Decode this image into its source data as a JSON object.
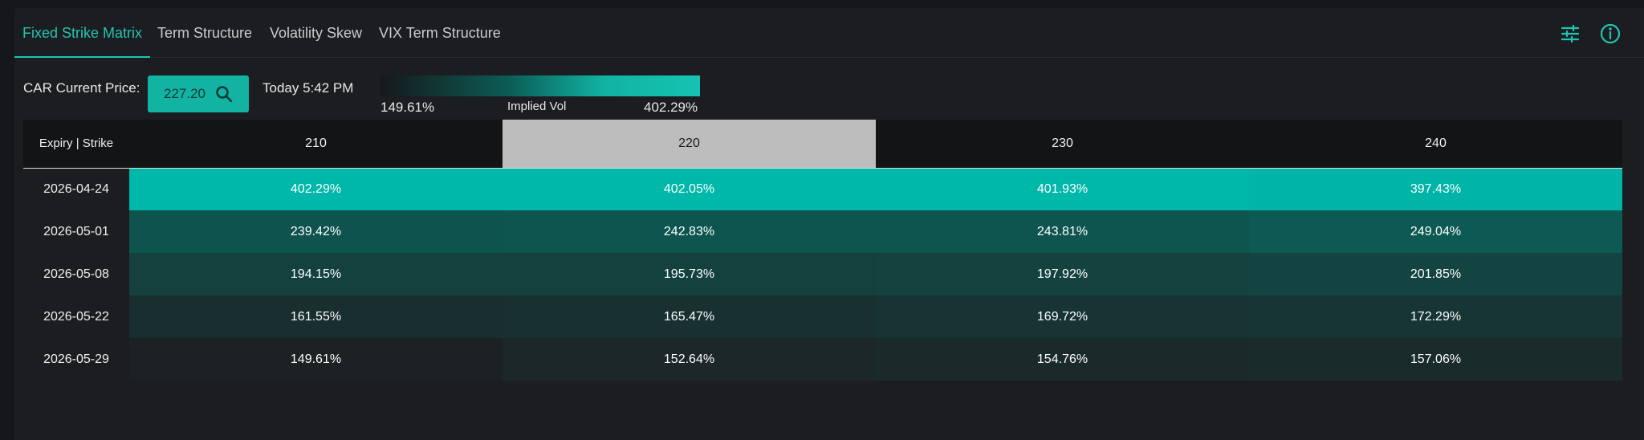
{
  "tabs": [
    {
      "label": "Fixed Strike Matrix",
      "active": true
    },
    {
      "label": "Term Structure",
      "active": false
    },
    {
      "label": "Volatility Skew",
      "active": false
    },
    {
      "label": "VIX Term Structure",
      "active": false
    }
  ],
  "header_icons": [
    "sliders-icon",
    "info-icon"
  ],
  "toolbar": {
    "price_label": "CAR Current Price:",
    "price_value": "227.20",
    "timestamp": "Today 5:42 PM",
    "legend": {
      "min": "149.61%",
      "title": "Implied Vol",
      "max": "402.29%"
    }
  },
  "colors": {
    "accent": "#20c5b2",
    "scale_high": "#00b8a9",
    "highlight_column": "#bdbdbd"
  },
  "matrix": {
    "corner_label": "Expiry | Strike",
    "strikes": [
      "210",
      "220",
      "230",
      "240"
    ],
    "highlighted_strike": "220",
    "rows": [
      {
        "expiry": "2026-04-24",
        "values": [
          "402.29%",
          "402.05%",
          "401.93%",
          "397.43%"
        ]
      },
      {
        "expiry": "2026-05-01",
        "values": [
          "239.42%",
          "242.83%",
          "243.81%",
          "249.04%"
        ]
      },
      {
        "expiry": "2026-05-08",
        "values": [
          "194.15%",
          "195.73%",
          "197.92%",
          "201.85%"
        ]
      },
      {
        "expiry": "2026-05-22",
        "values": [
          "161.55%",
          "165.47%",
          "169.72%",
          "172.29%"
        ]
      },
      {
        "expiry": "2026-05-29",
        "values": [
          "149.61%",
          "152.64%",
          "154.76%",
          "157.06%"
        ]
      }
    ]
  }
}
